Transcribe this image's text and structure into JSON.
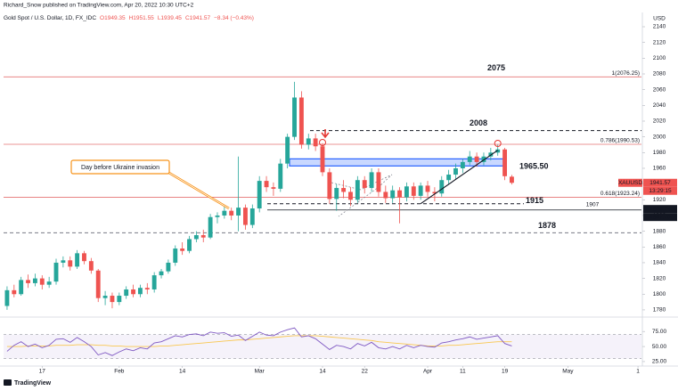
{
  "chart_data": {
    "type": "candlestick",
    "header": {
      "author": "Richard_Snow published on TradingView.com, Apr 20, 2022 10:30 UTC+2",
      "symbol": "Gold Spot / U.S. Dollar, 1D, FX_IDC",
      "ohlc": [
        "O1949.35",
        "H1951.55",
        "L1939.45",
        "C1941.57",
        "−8.34 (−0.43%)"
      ]
    },
    "currency": "USD",
    "up_color": "#26a69a",
    "down_color": "#ef5350",
    "xlim": [
      -0.5,
      90.5
    ],
    "xticks": [
      {
        "value": 5,
        "label": "17"
      },
      {
        "value": 16,
        "label": "Feb"
      },
      {
        "value": 25,
        "label": "14"
      },
      {
        "value": 36,
        "label": "Mar"
      },
      {
        "value": 45,
        "label": "14"
      },
      {
        "value": 51,
        "label": "22"
      },
      {
        "value": 60,
        "label": "Apr"
      },
      {
        "value": 65,
        "label": "11"
      },
      {
        "value": 71,
        "label": "19"
      },
      {
        "value": 80,
        "label": "May"
      },
      {
        "value": 90,
        "label": "1"
      }
    ],
    "ylim": [
      1772,
      2157
    ],
    "yticks": [
      2140,
      2120,
      2100,
      2080,
      2060,
      2040,
      2020,
      2000,
      1980,
      1960,
      1940,
      1920,
      1900,
      1880,
      1860,
      1840,
      1820,
      1800,
      1780
    ],
    "grid": false,
    "candles": [
      [
        1785,
        1810,
        1780,
        1805
      ],
      [
        1805,
        1812,
        1796,
        1800
      ],
      [
        1800,
        1822,
        1798,
        1818
      ],
      [
        1818,
        1825,
        1808,
        1814
      ],
      [
        1814,
        1826,
        1810,
        1820
      ],
      [
        1820,
        1824,
        1806,
        1812
      ],
      [
        1812,
        1822,
        1808,
        1816
      ],
      [
        1816,
        1845,
        1812,
        1840
      ],
      [
        1840,
        1848,
        1834,
        1843
      ],
      [
        1843,
        1848,
        1830,
        1835
      ],
      [
        1835,
        1856,
        1832,
        1852
      ],
      [
        1852,
        1855,
        1838,
        1842
      ],
      [
        1842,
        1846,
        1826,
        1830
      ],
      [
        1830,
        1832,
        1790,
        1795
      ],
      [
        1795,
        1804,
        1786,
        1798
      ],
      [
        1798,
        1802,
        1782,
        1790
      ],
      [
        1790,
        1802,
        1786,
        1798
      ],
      [
        1798,
        1810,
        1794,
        1806
      ],
      [
        1806,
        1812,
        1796,
        1800
      ],
      [
        1800,
        1812,
        1796,
        1808
      ],
      [
        1808,
        1814,
        1800,
        1806
      ],
      [
        1806,
        1828,
        1802,
        1824
      ],
      [
        1824,
        1832,
        1820,
        1829
      ],
      [
        1829,
        1844,
        1826,
        1840
      ],
      [
        1840,
        1862,
        1836,
        1858
      ],
      [
        1858,
        1866,
        1850,
        1855
      ],
      [
        1855,
        1874,
        1852,
        1870
      ],
      [
        1870,
        1880,
        1866,
        1875
      ],
      [
        1875,
        1882,
        1866,
        1872
      ],
      [
        1872,
        1902,
        1870,
        1898
      ],
      [
        1898,
        1904,
        1890,
        1900
      ],
      [
        1900,
        1912,
        1896,
        1906
      ],
      [
        1906,
        1910,
        1894,
        1900
      ],
      [
        1900,
        1975,
        1880,
        1910
      ],
      [
        1910,
        1914,
        1882,
        1888
      ],
      [
        1888,
        1914,
        1884,
        1909
      ],
      [
        1909,
        1950,
        1904,
        1944
      ],
      [
        1944,
        1950,
        1930,
        1936
      ],
      [
        1936,
        1942,
        1925,
        1934
      ],
      [
        1934,
        1972,
        1930,
        1966
      ],
      [
        1966,
        2004,
        1960,
        2000
      ],
      [
        2000,
        2070,
        1996,
        2050
      ],
      [
        2050,
        2058,
        1985,
        1990
      ],
      [
        1990,
        2004,
        1984,
        1998
      ],
      [
        1998,
        2004,
        1982,
        1988
      ],
      [
        1988,
        1992,
        1950,
        1955
      ],
      [
        1955,
        1960,
        1915,
        1921
      ],
      [
        1921,
        1940,
        1906,
        1935
      ],
      [
        1935,
        1945,
        1922,
        1930
      ],
      [
        1930,
        1936,
        1912,
        1920
      ],
      [
        1920,
        1950,
        1916,
        1945
      ],
      [
        1945,
        1950,
        1928,
        1935
      ],
      [
        1935,
        1960,
        1930,
        1955
      ],
      [
        1955,
        1960,
        1924,
        1930
      ],
      [
        1930,
        1938,
        1916,
        1922
      ],
      [
        1922,
        1938,
        1916,
        1932
      ],
      [
        1932,
        1936,
        1890,
        1923
      ],
      [
        1923,
        1942,
        1918,
        1937
      ],
      [
        1937,
        1942,
        1920,
        1925
      ],
      [
        1925,
        1942,
        1920,
        1938
      ],
      [
        1938,
        1944,
        1924,
        1930
      ],
      [
        1930,
        1936,
        1918,
        1928
      ],
      [
        1928,
        1950,
        1924,
        1945
      ],
      [
        1945,
        1958,
        1940,
        1952
      ],
      [
        1952,
        1966,
        1946,
        1960
      ],
      [
        1960,
        1972,
        1954,
        1968
      ],
      [
        1968,
        1982,
        1964,
        1975
      ],
      [
        1975,
        1980,
        1962,
        1968
      ],
      [
        1968,
        1980,
        1964,
        1975
      ],
      [
        1975,
        1986,
        1970,
        1980
      ],
      [
        1980,
        1990,
        1976,
        1984
      ],
      [
        1984,
        1986,
        1945,
        1950
      ],
      [
        1949.35,
        1951.55,
        1939.45,
        1941.57
      ]
    ],
    "levels": [
      {
        "value": 2076.25,
        "label": "1(2076.25)",
        "color": "#e57373",
        "style": "solid"
      },
      {
        "value": 1990.53,
        "label": "0.786(1990.53)",
        "color": "#e57373",
        "style": "solid"
      },
      {
        "value": 1923.24,
        "label": "0.618(1923.24)",
        "color": "#e57373",
        "style": "solid"
      },
      {
        "value": 2008,
        "label": "2008",
        "color": "#131722",
        "style": "dashed"
      },
      {
        "value": 1915,
        "label": "1915",
        "color": "#131722",
        "style": "dashed"
      },
      {
        "value": 1907,
        "label": "1907",
        "color": "#131722",
        "style": "solid"
      },
      {
        "value": 1878,
        "label": "1878",
        "color": "#787b86",
        "style": "dashed"
      }
    ],
    "annotations": [
      {
        "value": 2075,
        "label": "2075"
      }
    ],
    "zone": {
      "low": 1963,
      "high": 1972,
      "label": "1965.50",
      "color": "#2962ff"
    },
    "trendline": [
      1915,
      1983
    ],
    "callout": {
      "text": "Day before Ukraine invasion",
      "color": "#f7931a"
    },
    "price_tags": [
      {
        "value": 1941.57,
        "label": "1941.57",
        "symbol": "XAUUSD",
        "countdown": "13:29:15",
        "color": "#ef5350"
      },
      {
        "value": 1908.24,
        "label": "1908.24",
        "color": "#131722"
      },
      {
        "value": 1907.7,
        "label": "1907.70",
        "color": "#131722"
      }
    ],
    "rsi": {
      "color": "#7e57c2",
      "ma_color": "#f9c74f",
      "ylim": [
        19,
        96
      ],
      "yticks": [
        {
          "value": 75,
          "label": "75.00"
        },
        {
          "value": 50,
          "label": "50.00"
        },
        {
          "value": 25,
          "label": "25.00"
        }
      ],
      "band": [
        30,
        70
      ],
      "values": [
        42,
        52,
        58,
        50,
        54,
        48,
        52,
        62,
        63,
        57,
        65,
        58,
        50,
        36,
        40,
        35,
        41,
        46,
        43,
        48,
        46,
        56,
        58,
        63,
        68,
        66,
        70,
        71,
        68,
        74,
        72,
        73,
        67,
        69,
        60,
        67,
        74,
        69,
        68,
        74,
        78,
        81,
        66,
        68,
        63,
        54,
        45,
        52,
        50,
        46,
        55,
        51,
        57,
        48,
        46,
        50,
        46,
        52,
        48,
        52,
        50,
        49,
        56,
        58,
        61,
        63,
        66,
        62,
        64,
        66,
        68,
        55,
        51
      ],
      "ma": [
        50,
        50,
        50,
        51,
        51,
        51,
        51,
        52,
        52,
        52,
        53,
        53,
        53,
        52,
        52,
        51,
        51,
        50,
        50,
        50,
        50,
        50,
        51,
        51,
        52,
        53,
        54,
        55,
        56,
        57,
        58,
        59,
        60,
        61,
        61,
        62,
        63,
        64,
        65,
        66,
        67,
        68,
        68,
        68,
        68,
        67,
        66,
        65,
        64,
        63,
        62,
        61,
        60,
        58,
        57,
        56,
        55,
        54,
        53,
        52,
        51,
        51,
        51,
        52,
        52,
        53,
        54,
        55,
        56,
        57,
        58,
        58,
        58
      ]
    },
    "footer": "TradingView"
  }
}
